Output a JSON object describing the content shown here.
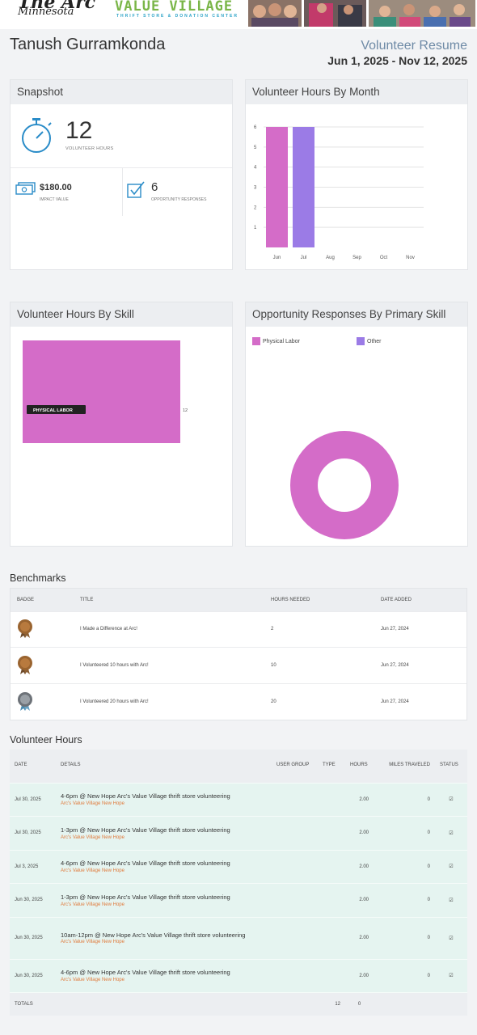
{
  "header": {
    "logo_arc": "The Arc",
    "logo_state": "Minnesota",
    "logo_store": "VALUE VILLAGE",
    "logo_store_sub": "THRIFT STORE & DONATION CENTER"
  },
  "profile": {
    "name": "Tanush Gurramkonda",
    "resume_label": "Volunteer Resume",
    "date_range": "Jun 1, 2025 - Nov 12, 2025"
  },
  "snapshot": {
    "title": "Snapshot",
    "hours_value": "12",
    "hours_label": "VOLUNTEER HOURS",
    "impact_value": "$180.00",
    "impact_label": "IMPACT VALUE",
    "responses_value": "6",
    "responses_label": "OPPORTUNITY RESPONSES"
  },
  "hours_by_month": {
    "title": "Volunteer Hours By Month"
  },
  "hours_by_skill": {
    "title": "Volunteer Hours By Skill"
  },
  "responses_by_skill": {
    "title": "Opportunity Responses By Primary Skill"
  },
  "chart_data": [
    {
      "type": "bar",
      "categories": [
        "Jun",
        "Jul",
        "Aug",
        "Sep",
        "Oct",
        "Nov"
      ],
      "values": [
        6,
        6,
        0,
        0,
        0,
        0
      ],
      "bar_colors": [
        "#d46cc8",
        "#9b7be6",
        null,
        null,
        null,
        null
      ],
      "yticks": [
        1,
        2,
        3,
        4,
        5,
        6
      ],
      "ylim": [
        0,
        6
      ],
      "grid": true
    },
    {
      "type": "heatmap",
      "labels": [
        "PHYSICAL LABOR"
      ],
      "values": [
        12
      ],
      "colors": [
        "#d46cc8"
      ]
    },
    {
      "type": "pie",
      "legend": [
        {
          "name": "Physical Labor",
          "color": "#d46cc8"
        },
        {
          "name": "Other",
          "color": "#9b7be6"
        }
      ],
      "labels": [
        "Physical Labor"
      ],
      "values": [
        6
      ],
      "colors": [
        "#d46cc8"
      ],
      "legend_position": "top-left"
    }
  ],
  "benchmarks": {
    "title": "Benchmarks",
    "columns": [
      "BADGE",
      "TITLE",
      "HOURS NEEDED",
      "DATE ADDED"
    ],
    "rows": [
      {
        "badge": "bronze",
        "title": "I Made a Difference at Arc!",
        "hours": "2",
        "date": "Jun 27, 2024"
      },
      {
        "badge": "bronze",
        "title": "I Volunteered 10 hours with Arc!",
        "hours": "10",
        "date": "Jun 27, 2024"
      },
      {
        "badge": "silver",
        "title": "I Volunteered 20 hours with Arc!",
        "hours": "20",
        "date": "Jun 27, 2024"
      }
    ]
  },
  "volunteer_hours": {
    "title": "Volunteer Hours",
    "columns": {
      "date": "DATE",
      "details": "DETAILS",
      "user_group": "USER GROUP",
      "type": "TYPE",
      "hours": "HOURS",
      "miles": "MILES TRAVELED",
      "status": "STATUS"
    },
    "rows": [
      {
        "date": "Jul 30, 2025",
        "detail": "4-6pm @ New Hope Arc's Value Village thrift store volunteering",
        "org": "Arc's Value Village New Hope",
        "hours": "2.00",
        "miles": "0"
      },
      {
        "date": "Jul 30, 2025",
        "detail": "1-3pm @ New Hope Arc's Value Village thrift store volunteering",
        "org": "Arc's Value Village New Hope",
        "hours": "2.00",
        "miles": "0"
      },
      {
        "date": "Jul 3, 2025",
        "detail": "4-6pm @ New Hope Arc's Value Village thrift store volunteering",
        "org": "Arc's Value Village New Hope",
        "hours": "2.00",
        "miles": "0"
      },
      {
        "date": "Jun 30, 2025",
        "detail": "1-3pm @ New Hope Arc's Value Village thrift store volunteering",
        "org": "Arc's Value Village New Hope",
        "hours": "2.00",
        "miles": "0"
      },
      {
        "date": "Jun 30, 2025",
        "detail": "10am-12pm @ New Hope Arc's Value Village thrift store volunteering",
        "org": "Arc's Value Village New Hope",
        "hours": "2.00",
        "miles": "0"
      },
      {
        "date": "Jun 30, 2025",
        "detail": "4-6pm @ New Hope Arc's Value Village thrift store volunteering",
        "org": "Arc's Value Village New Hope",
        "hours": "2.00",
        "miles": "0"
      }
    ],
    "totals_label": "TOTALS",
    "totals_hours": "12",
    "totals_miles": "0"
  }
}
